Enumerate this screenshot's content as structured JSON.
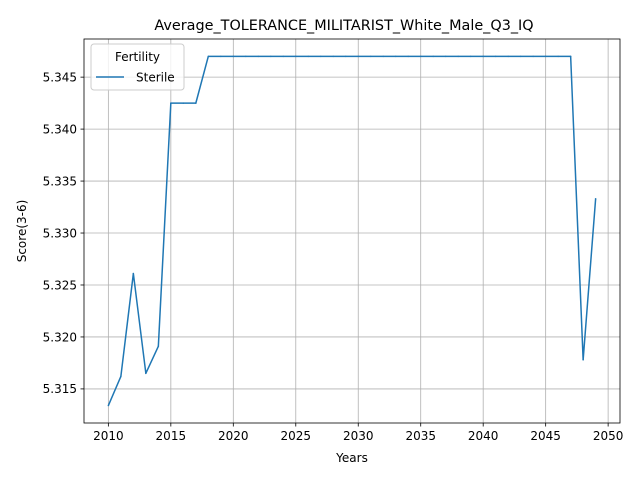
{
  "chart_data": {
    "type": "line",
    "title": "Average_TOLERANCE_MILITARIST_White_Male_Q3_IQ",
    "xlabel": "Years",
    "ylabel": "Score(3-6)",
    "xlim": [
      2008.05,
      2050.95
    ],
    "ylim": [
      5.31172,
      5.34867
    ],
    "xticks": [
      2010,
      2015,
      2020,
      2025,
      2030,
      2035,
      2040,
      2045,
      2050
    ],
    "yticks": [
      "5.315",
      "5.320",
      "5.325",
      "5.330",
      "5.335",
      "5.340",
      "5.345"
    ],
    "ytick_values": [
      5.315,
      5.32,
      5.325,
      5.33,
      5.335,
      5.34,
      5.345
    ],
    "grid": true,
    "legend": {
      "title": "Fertility",
      "placement": "upper-left"
    },
    "series": [
      {
        "name": "Sterile",
        "color": "#1f77b4",
        "x": [
          2010,
          2011,
          2012,
          2013,
          2014,
          2015,
          2016,
          2017,
          2018,
          2019,
          2020,
          2021,
          2022,
          2023,
          2024,
          2025,
          2026,
          2027,
          2028,
          2029,
          2030,
          2031,
          2032,
          2033,
          2034,
          2035,
          2036,
          2037,
          2038,
          2039,
          2040,
          2041,
          2042,
          2043,
          2044,
          2045,
          2046,
          2047,
          2048,
          2049
        ],
        "y": [
          5.3134,
          5.3162,
          5.3261,
          5.3165,
          5.3191,
          5.3425,
          5.3425,
          5.3425,
          5.347,
          5.347,
          5.347,
          5.347,
          5.347,
          5.347,
          5.347,
          5.347,
          5.347,
          5.347,
          5.347,
          5.347,
          5.347,
          5.347,
          5.347,
          5.347,
          5.347,
          5.347,
          5.347,
          5.347,
          5.347,
          5.347,
          5.347,
          5.347,
          5.347,
          5.347,
          5.347,
          5.347,
          5.347,
          5.347,
          5.3178,
          5.3333
        ]
      }
    ]
  }
}
